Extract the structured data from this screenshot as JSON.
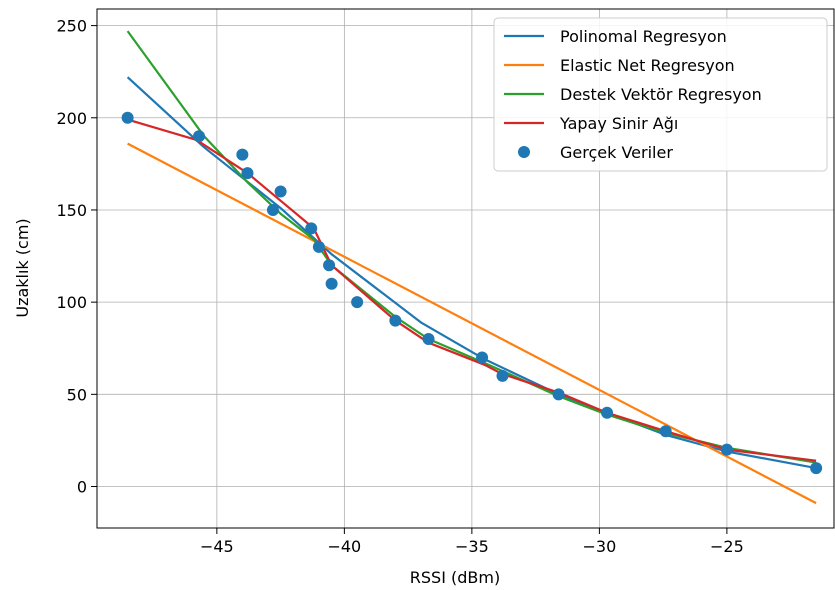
{
  "chart_data": {
    "type": "line",
    "xlabel": "RSSI (dBm)",
    "ylabel": "Uzaklık (cm)",
    "xlim": [
      -49.7,
      -20.8
    ],
    "ylim": [
      -22.5,
      259
    ],
    "xticks": [
      -45,
      -40,
      -35,
      -30,
      -25
    ],
    "xtick_labels": [
      "−45",
      "−40",
      "−35",
      "−30",
      "−25"
    ],
    "yticks": [
      0,
      50,
      100,
      150,
      200,
      250
    ],
    "ytick_labels": [
      "0",
      "50",
      "100",
      "150",
      "200",
      "250"
    ],
    "grid": true,
    "legend_position": "top-right",
    "series": [
      {
        "name": "Polinomal Regresyon",
        "kind": "line",
        "color": "#1f77b4",
        "points": [
          [
            -48.5,
            222
          ],
          [
            -45.5,
            184
          ],
          [
            -42.5,
            151
          ],
          [
            -40.5,
            126
          ],
          [
            -37,
            89
          ],
          [
            -34.5,
            69
          ],
          [
            -31.6,
            50
          ],
          [
            -29.7,
            40
          ],
          [
            -27.4,
            28
          ],
          [
            -25,
            19
          ],
          [
            -21.5,
            10
          ]
        ]
      },
      {
        "name": "Elastic Net Regresyon",
        "kind": "line",
        "color": "#ff7f0e",
        "points": [
          [
            -48.5,
            186
          ],
          [
            -21.5,
            -9
          ]
        ]
      },
      {
        "name": "Destek Vektör Regresyon",
        "kind": "line",
        "color": "#2ca02c",
        "points": [
          [
            -48.5,
            247
          ],
          [
            -45.5,
            190
          ],
          [
            -43.8,
            165
          ],
          [
            -42.5,
            148
          ],
          [
            -41.2,
            134
          ],
          [
            -40.5,
            120
          ],
          [
            -38,
            92
          ],
          [
            -36.7,
            80
          ],
          [
            -34.5,
            67
          ],
          [
            -31.6,
            49
          ],
          [
            -29.7,
            39
          ],
          [
            -27.4,
            29
          ],
          [
            -25,
            21
          ],
          [
            -21.5,
            13
          ]
        ]
      },
      {
        "name": "Yapay Sinir Ağı",
        "kind": "line",
        "color": "#d62728",
        "points": [
          [
            -48.5,
            199
          ],
          [
            -45.8,
            188
          ],
          [
            -43.8,
            170
          ],
          [
            -42.5,
            155
          ],
          [
            -41.2,
            140
          ],
          [
            -40.5,
            120
          ],
          [
            -38,
            90
          ],
          [
            -36.7,
            78
          ],
          [
            -34.5,
            66
          ],
          [
            -33.8,
            61
          ],
          [
            -31.6,
            51
          ],
          [
            -29.7,
            40
          ],
          [
            -27.4,
            30
          ],
          [
            -25,
            20
          ],
          [
            -21.5,
            14
          ]
        ]
      },
      {
        "name": "Gerçek Veriler",
        "kind": "scatter",
        "color": "#1f77b4",
        "points": [
          [
            -48.5,
            200
          ],
          [
            -45.7,
            190
          ],
          [
            -44,
            180
          ],
          [
            -43.8,
            170
          ],
          [
            -42.8,
            150
          ],
          [
            -42.5,
            160
          ],
          [
            -41.3,
            140
          ],
          [
            -41,
            130
          ],
          [
            -40.6,
            120
          ],
          [
            -40.5,
            110
          ],
          [
            -39.5,
            100
          ],
          [
            -38,
            90
          ],
          [
            -36.7,
            80
          ],
          [
            -34.6,
            70
          ],
          [
            -33.8,
            60
          ],
          [
            -31.6,
            50
          ],
          [
            -29.7,
            40
          ],
          [
            -27.4,
            30
          ],
          [
            -25,
            20
          ],
          [
            -21.5,
            10
          ]
        ]
      }
    ]
  }
}
